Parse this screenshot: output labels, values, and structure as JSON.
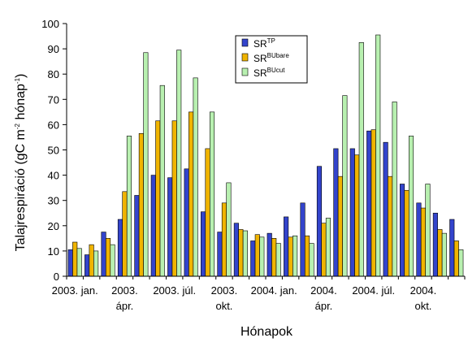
{
  "chart_data": {
    "type": "bar",
    "xlabel": "Hónapok",
    "ylabel": {
      "text": "Talajrespiráció (gC m",
      "sup1": "-2",
      "mid": " hónap",
      "sup2": "-1",
      "end": ")"
    },
    "ylim": [
      0,
      100
    ],
    "yticks": [
      0,
      10,
      20,
      30,
      40,
      50,
      60,
      70,
      80,
      90,
      100
    ],
    "grid": false,
    "legend_position": "top-center",
    "months": 24,
    "xtick_labels": [
      {
        "index": 0,
        "lines": [
          "2003. jan."
        ]
      },
      {
        "index": 3,
        "lines": [
          "2003.",
          "ápr."
        ]
      },
      {
        "index": 6,
        "lines": [
          "2003. júl."
        ]
      },
      {
        "index": 9,
        "lines": [
          "2003.",
          "okt."
        ]
      },
      {
        "index": 12,
        "lines": [
          "2004. jan."
        ]
      },
      {
        "index": 15,
        "lines": [
          "2004.",
          "ápr."
        ]
      },
      {
        "index": 18,
        "lines": [
          "2004. júl."
        ]
      },
      {
        "index": 21,
        "lines": [
          "2004.",
          "okt."
        ]
      }
    ],
    "series": [
      {
        "name": "SR",
        "sup": "TP",
        "color": "#3344cc",
        "values": [
          10.5,
          8.5,
          17.5,
          22.5,
          32,
          40,
          39,
          42.5,
          25.5,
          17.5,
          21,
          14,
          17,
          23.5,
          29,
          43.5,
          50.5,
          50.5,
          57.5,
          53,
          36.5,
          29,
          25,
          22.5
        ]
      },
      {
        "name": "SR",
        "sup": "BUbare",
        "color": "#f0b400",
        "values": [
          13.5,
          12.5,
          15,
          33.5,
          56.5,
          61.5,
          61.5,
          65,
          50.5,
          29,
          18.5,
          16.5,
          15,
          15.5,
          16,
          21,
          39.5,
          48,
          58,
          39.5,
          34,
          27,
          18.5,
          14
        ]
      },
      {
        "name": "SR",
        "sup": "BUcut",
        "color": "#b8f0b0",
        "values": [
          11,
          10,
          12.5,
          55.5,
          88.5,
          75.5,
          89.5,
          78.5,
          65,
          37,
          18,
          15.5,
          13,
          16,
          13,
          23,
          71.5,
          92.5,
          95.5,
          69,
          55.5,
          36.5,
          17,
          10.5
        ]
      }
    ]
  }
}
